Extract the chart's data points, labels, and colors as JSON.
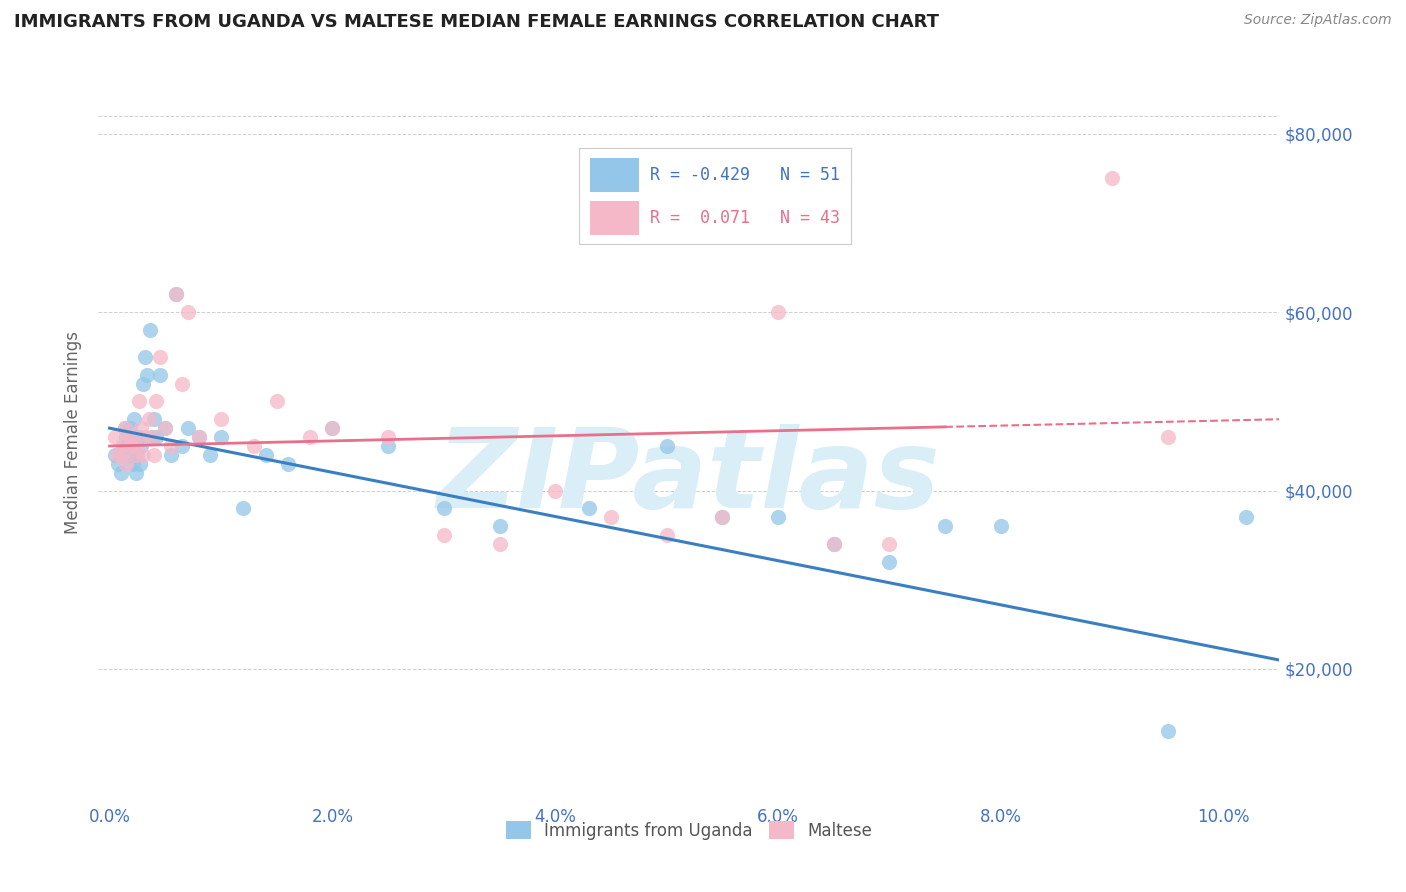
{
  "title": "IMMIGRANTS FROM UGANDA VS MALTESE MEDIAN FEMALE EARNINGS CORRELATION CHART",
  "source": "Source: ZipAtlas.com",
  "ylabel": "Median Female Earnings",
  "xlim": [
    -0.1,
    10.5
  ],
  "ylim": [
    5000,
    88000
  ],
  "yticks": [
    20000,
    40000,
    60000,
    80000
  ],
  "ytick_labels": [
    "$20,000",
    "$40,000",
    "$60,000",
    "$80,000"
  ],
  "xticks": [
    0.0,
    2.0,
    4.0,
    6.0,
    8.0,
    10.0
  ],
  "xtick_labels": [
    "0.0%",
    "2.0%",
    "4.0%",
    "6.0%",
    "8.0%",
    "10.0%"
  ],
  "blue_color": "#93c6e8",
  "pink_color": "#f4b8c8",
  "blue_line_color": "#3a7fc1",
  "pink_line_color": "#e8708a",
  "tick_color": "#4472c4",
  "grid_color": "#d0d0d0",
  "watermark_color": "#daeef8",
  "series1_label": "Immigrants from Uganda",
  "series2_label": "Maltese",
  "blue_x": [
    0.05,
    0.08,
    0.1,
    0.12,
    0.14,
    0.15,
    0.16,
    0.17,
    0.18,
    0.2,
    0.21,
    0.22,
    0.23,
    0.24,
    0.25,
    0.26,
    0.27,
    0.28,
    0.3,
    0.32,
    0.34,
    0.36,
    0.38,
    0.4,
    0.42,
    0.45,
    0.5,
    0.55,
    0.6,
    0.65,
    0.7,
    0.8,
    0.9,
    1.0,
    1.2,
    1.4,
    1.6,
    2.0,
    2.5,
    3.0,
    3.5,
    4.3,
    5.0,
    5.5,
    6.0,
    6.5,
    7.0,
    7.5,
    8.0,
    9.5,
    10.2
  ],
  "blue_y": [
    44000,
    43000,
    42000,
    45000,
    47000,
    46000,
    45000,
    44000,
    47000,
    45000,
    43000,
    48000,
    46000,
    42000,
    44000,
    46000,
    43000,
    45000,
    52000,
    55000,
    53000,
    58000,
    46000,
    48000,
    46000,
    53000,
    47000,
    44000,
    62000,
    45000,
    47000,
    46000,
    44000,
    46000,
    38000,
    44000,
    43000,
    47000,
    45000,
    38000,
    36000,
    38000,
    45000,
    37000,
    37000,
    34000,
    32000,
    36000,
    36000,
    13000,
    37000
  ],
  "pink_x": [
    0.05,
    0.07,
    0.1,
    0.12,
    0.14,
    0.15,
    0.17,
    0.18,
    0.2,
    0.22,
    0.24,
    0.26,
    0.28,
    0.3,
    0.32,
    0.35,
    0.38,
    0.4,
    0.42,
    0.45,
    0.5,
    0.55,
    0.6,
    0.65,
    0.7,
    0.8,
    1.0,
    1.3,
    1.5,
    1.8,
    2.0,
    2.5,
    3.0,
    3.5,
    4.0,
    4.5,
    5.0,
    5.5,
    6.0,
    6.5,
    7.0,
    9.0,
    9.5
  ],
  "pink_y": [
    46000,
    44000,
    44000,
    45000,
    47000,
    43000,
    46000,
    45000,
    46000,
    45000,
    44000,
    50000,
    47000,
    44000,
    46000,
    48000,
    46000,
    44000,
    50000,
    55000,
    47000,
    45000,
    62000,
    52000,
    60000,
    46000,
    48000,
    45000,
    50000,
    46000,
    47000,
    46000,
    35000,
    34000,
    40000,
    37000,
    35000,
    37000,
    60000,
    34000,
    34000,
    75000,
    46000
  ],
  "blue_trend_x0": 0.0,
  "blue_trend_y0": 47000,
  "blue_trend_x1": 10.5,
  "blue_trend_y1": 21000,
  "pink_trend_x0": 0.0,
  "pink_trend_y0": 45000,
  "pink_trend_x1": 10.5,
  "pink_trend_y1": 48000,
  "pink_solid_end": 7.5
}
